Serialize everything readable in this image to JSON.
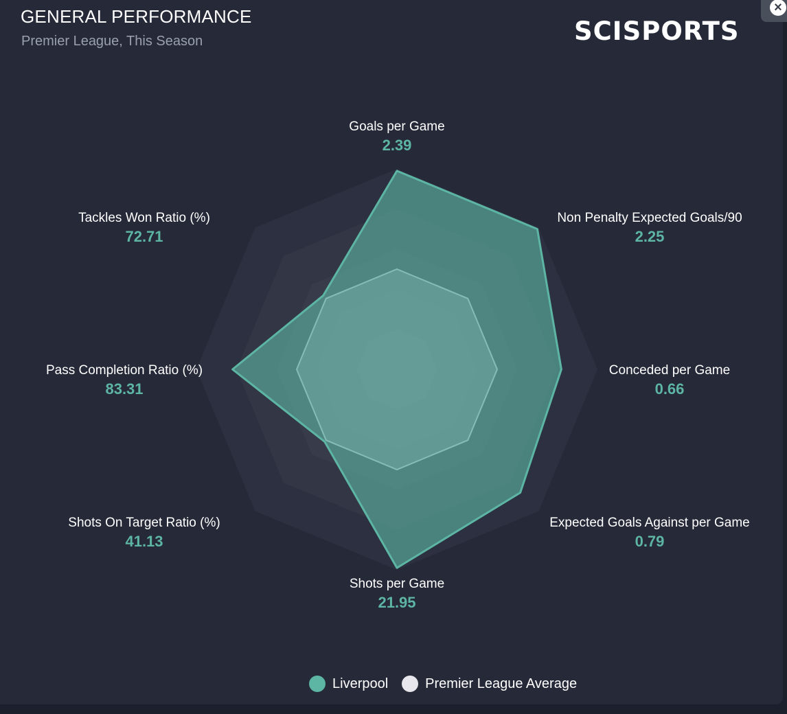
{
  "header": {
    "title": "GENERAL PERFORMANCE",
    "subtitle": "Premier League, This Season",
    "logo_text": "SCISPORTS",
    "close_icon": "close-icon"
  },
  "colors": {
    "liverpool": "#5db5a4",
    "average": "#e6e6ec",
    "background": "#252938"
  },
  "chart_data": {
    "type": "radar",
    "axes": [
      "Goals per Game",
      "Non Penalty Expected Goals/90",
      "Conceded per Game",
      "Expected Goals Against per Game",
      "Shots per Game",
      "Shots On Target Ratio (%)",
      "Pass Completion Ratio (%)",
      "Tackles Won Ratio (%)"
    ],
    "value_labels": [
      "2.39",
      "2.25",
      "0.66",
      "0.79",
      "21.95",
      "41.13",
      "83.31",
      "72.71"
    ],
    "scale": [
      0,
      1
    ],
    "rings": 5,
    "series": [
      {
        "name": "Liverpool",
        "values": [
          0.99,
          0.99,
          0.82,
          0.87,
          0.99,
          0.51,
          0.82,
          0.52
        ]
      },
      {
        "name": "Premier League Average",
        "values": [
          0.5,
          0.5,
          0.5,
          0.5,
          0.5,
          0.5,
          0.5,
          0.5
        ]
      }
    ]
  },
  "legend": {
    "items": [
      {
        "label": "Liverpool"
      },
      {
        "label": "Premier League Average"
      }
    ]
  }
}
